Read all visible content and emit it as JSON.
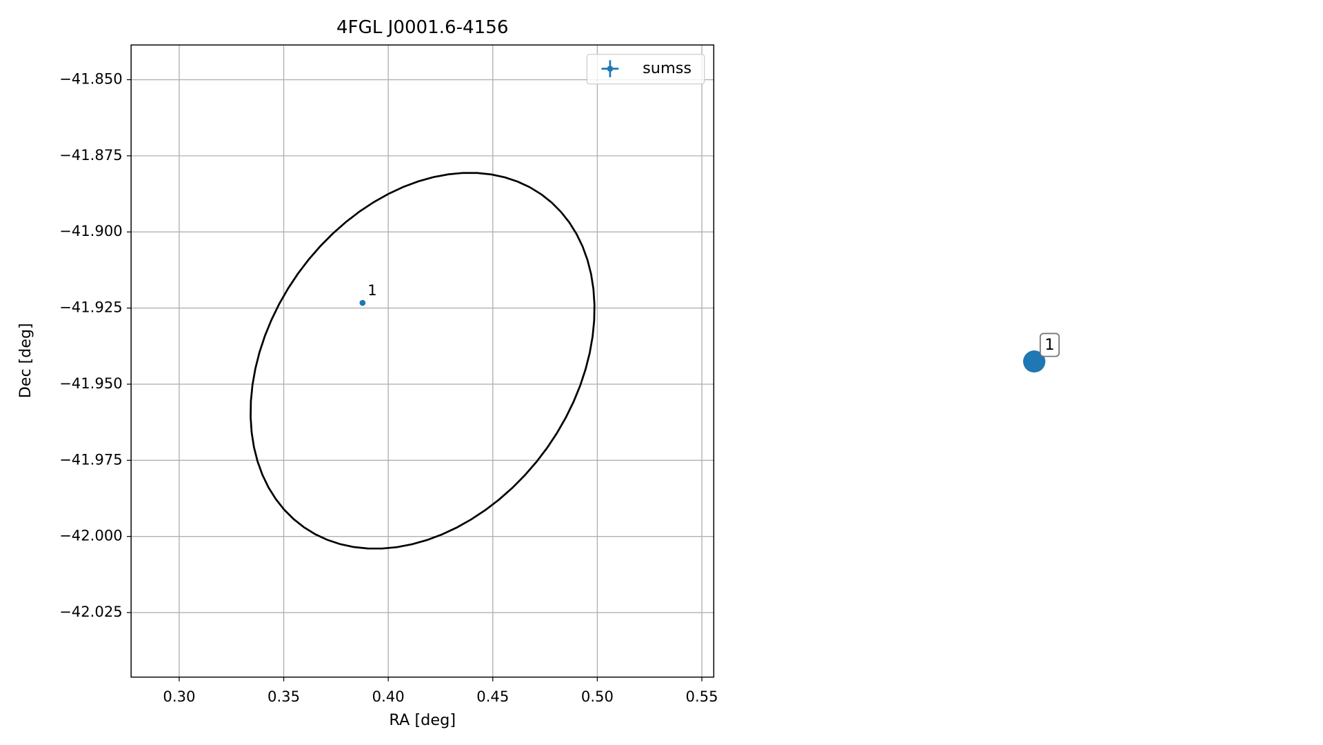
{
  "chart_data": {
    "type": "scatter",
    "title": "4FGL J0001.6-4156",
    "x_label": "RA [deg]",
    "y_label": "Dec [deg]",
    "xlim": [
      0.277,
      0.5557
    ],
    "ylim": [
      -42.0462,
      -41.8386
    ],
    "xticks": [
      {
        "value": 0.3,
        "label": "0.30"
      },
      {
        "value": 0.35,
        "label": "0.35"
      },
      {
        "value": 0.4,
        "label": "0.40"
      },
      {
        "value": 0.45,
        "label": "0.45"
      },
      {
        "value": 0.5,
        "label": "0.50"
      },
      {
        "value": 0.55,
        "label": "0.55"
      }
    ],
    "yticks": [
      {
        "value": -41.85,
        "label": "−41.850"
      },
      {
        "value": -41.875,
        "label": "−41.875"
      },
      {
        "value": -41.9,
        "label": "−41.900"
      },
      {
        "value": -41.925,
        "label": "−41.925"
      },
      {
        "value": -41.95,
        "label": "−41.950"
      },
      {
        "value": -41.975,
        "label": "−41.975"
      },
      {
        "value": -42.0,
        "label": "−42.000"
      },
      {
        "value": -42.025,
        "label": "−42.025"
      }
    ],
    "grid": true,
    "legend": "upper right",
    "series": [
      {
        "name": "sumss",
        "color": "#1f77b4",
        "x": [
          0.3877
        ],
        "y": [
          -41.9233
        ],
        "labels": [
          "1"
        ]
      }
    ],
    "ellipse": {
      "center": [
        0.4164,
        -41.9423
      ],
      "u": [
        0.0567,
        0.0547
      ],
      "v": [
        0.0596,
        -0.0286
      ],
      "color": "#000000"
    }
  },
  "side_marker": {
    "label": "1",
    "color": "#1f77b4"
  }
}
